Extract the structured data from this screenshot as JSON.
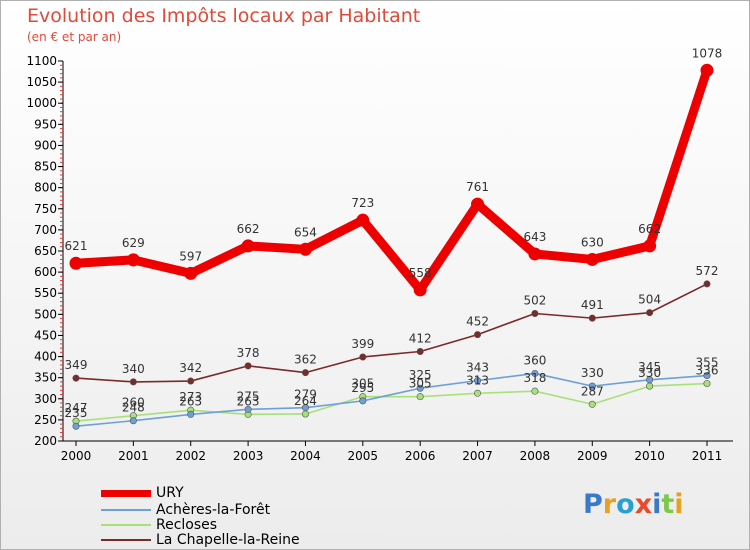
{
  "chart_data": {
    "type": "line",
    "title": "Evolution des Impôts locaux par Habitant",
    "subtitle": "(en € et par an)",
    "xlabel": "",
    "ylabel": "",
    "x": [
      "2000",
      "2001",
      "2002",
      "2003",
      "2004",
      "2005",
      "2006",
      "2007",
      "2008",
      "2009",
      "2010",
      "2011"
    ],
    "ylim": [
      200,
      1100
    ],
    "yticks": [
      200,
      250,
      300,
      350,
      400,
      450,
      500,
      550,
      600,
      650,
      700,
      750,
      800,
      850,
      900,
      950,
      1000,
      1050,
      1100
    ],
    "grid": false,
    "legend_position": "bottom-left",
    "series": [
      {
        "name": "URY",
        "color": "#ee0000",
        "values": [
          621,
          629,
          597,
          662,
          654,
          723,
          558,
          761,
          643,
          630,
          662,
          1078
        ]
      },
      {
        "name": "Achères-la-Forêt",
        "color": "#6e9fd8",
        "values": [
          235,
          248,
          263,
          275,
          279,
          295,
          325,
          343,
          360,
          330,
          345,
          355
        ]
      },
      {
        "name": "Recloses",
        "color": "#a8e07a",
        "values": [
          247,
          260,
          273,
          263,
          264,
          305,
          305,
          313,
          318,
          287,
          330,
          336
        ]
      },
      {
        "name": "La Chapelle-la-Reine",
        "color": "#7a2a2a",
        "values": [
          349,
          340,
          342,
          378,
          362,
          399,
          412,
          452,
          502,
          491,
          504,
          572
        ]
      }
    ]
  },
  "branding": {
    "logo_text": "Proxiti"
  }
}
